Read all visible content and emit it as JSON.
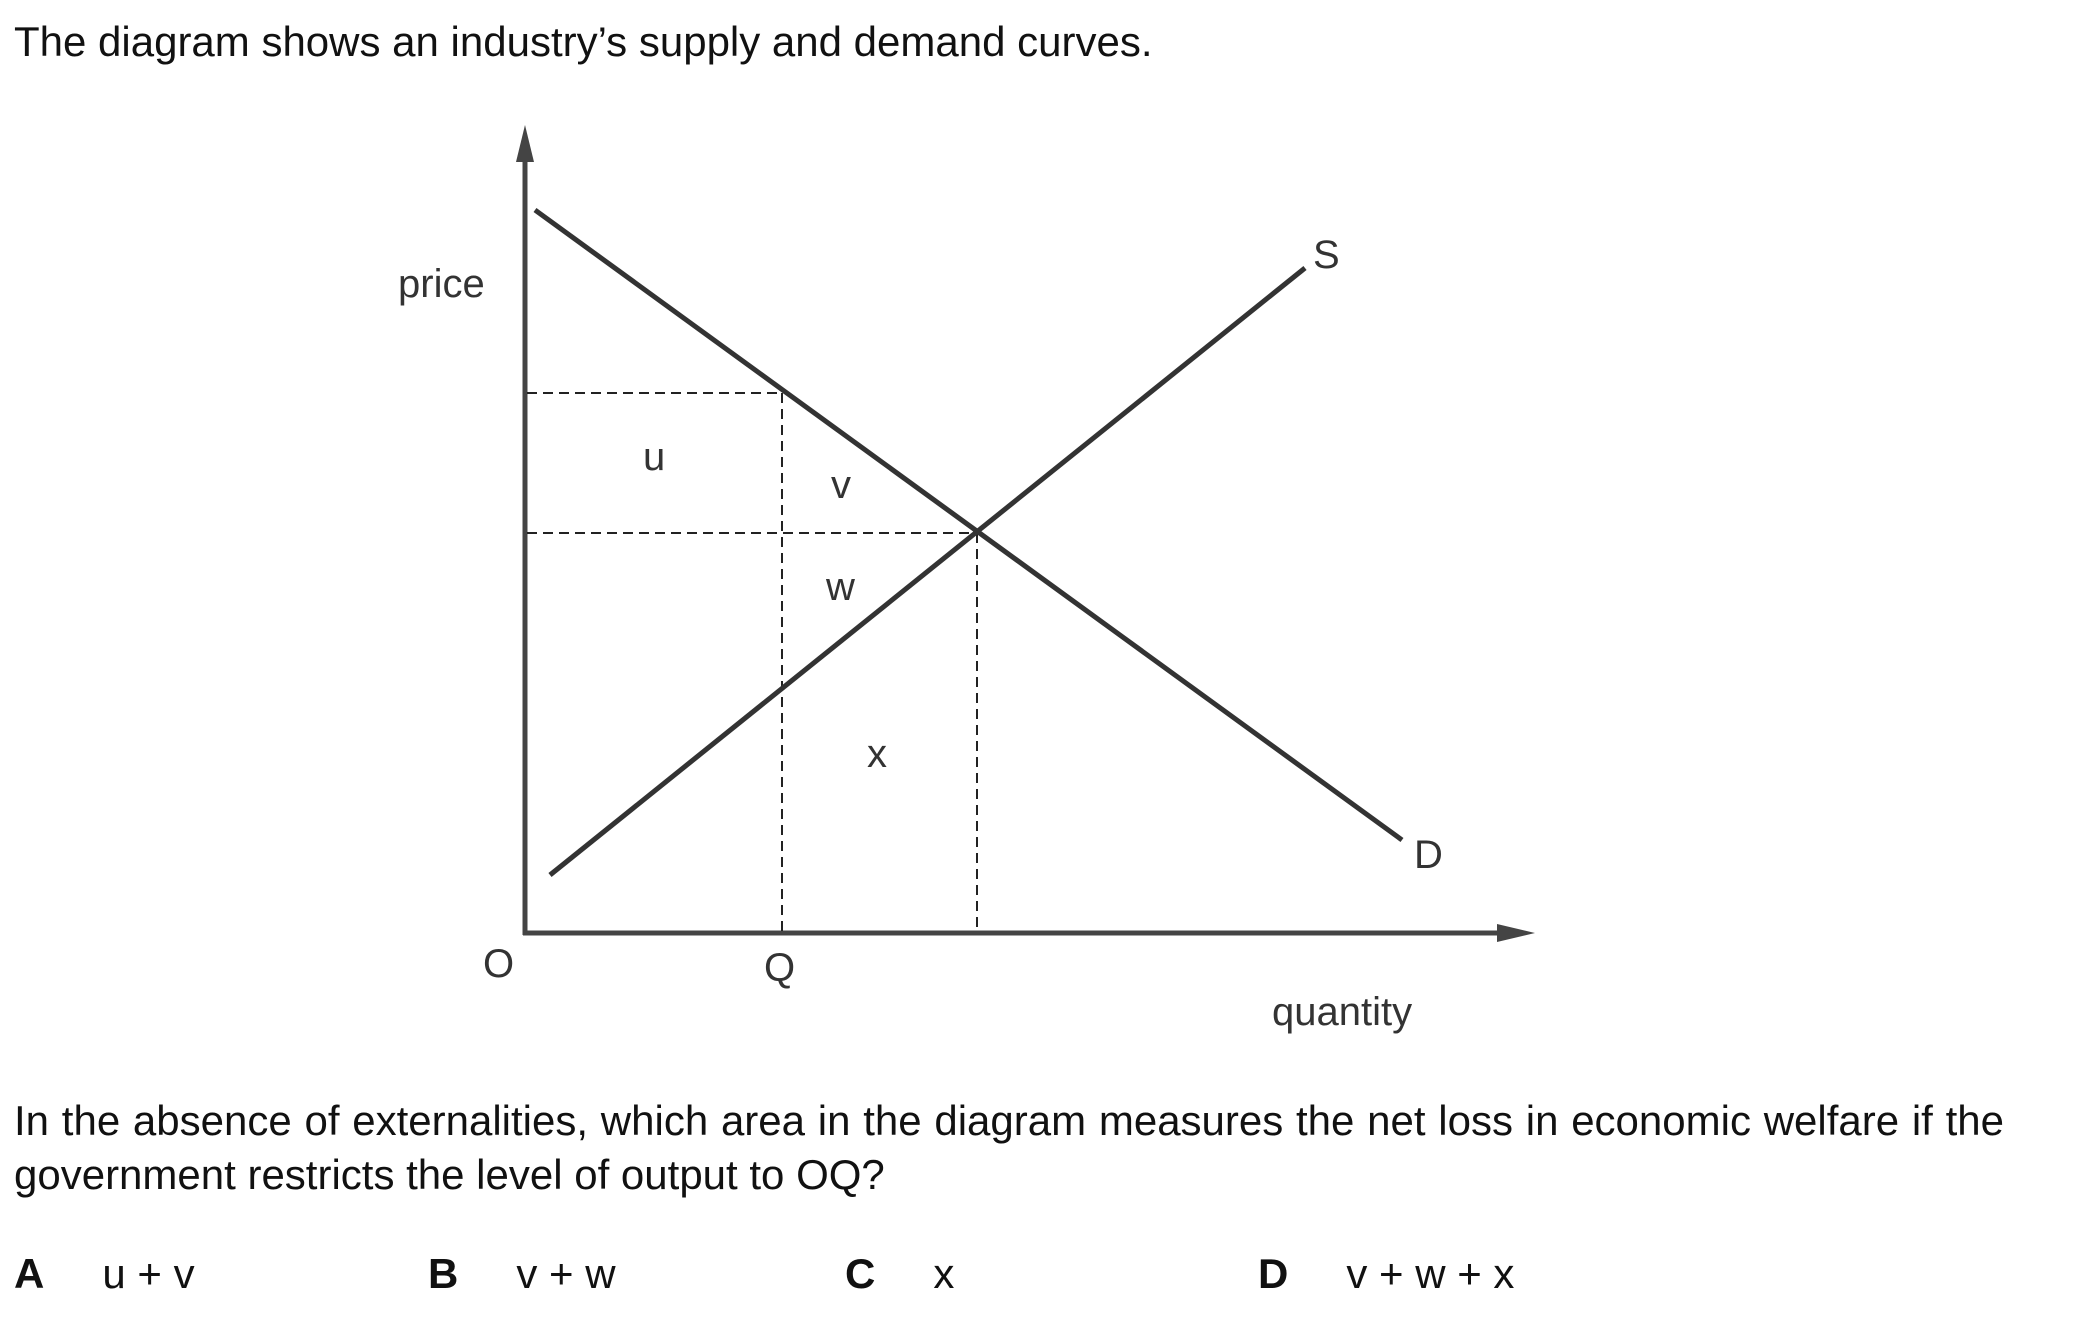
{
  "question": {
    "intro": "The diagram shows an industry’s supply and demand curves.",
    "text": "In the absence of externalities, which area in the diagram measures the net loss in economic welfare if the government restricts the level of output to OQ?"
  },
  "diagram": {
    "y_axis_label": "price",
    "x_axis_label": "quantity",
    "origin_label": "O",
    "q_label": "Q",
    "supply_label": "S",
    "demand_label": "D",
    "areas": {
      "u": "u",
      "v": "v",
      "w": "w",
      "x": "x"
    }
  },
  "options": [
    {
      "letter": "A",
      "text": "u + v"
    },
    {
      "letter": "B",
      "text": "v + w"
    },
    {
      "letter": "C",
      "text": "x"
    },
    {
      "letter": "D",
      "text": "v + w + x"
    }
  ]
}
